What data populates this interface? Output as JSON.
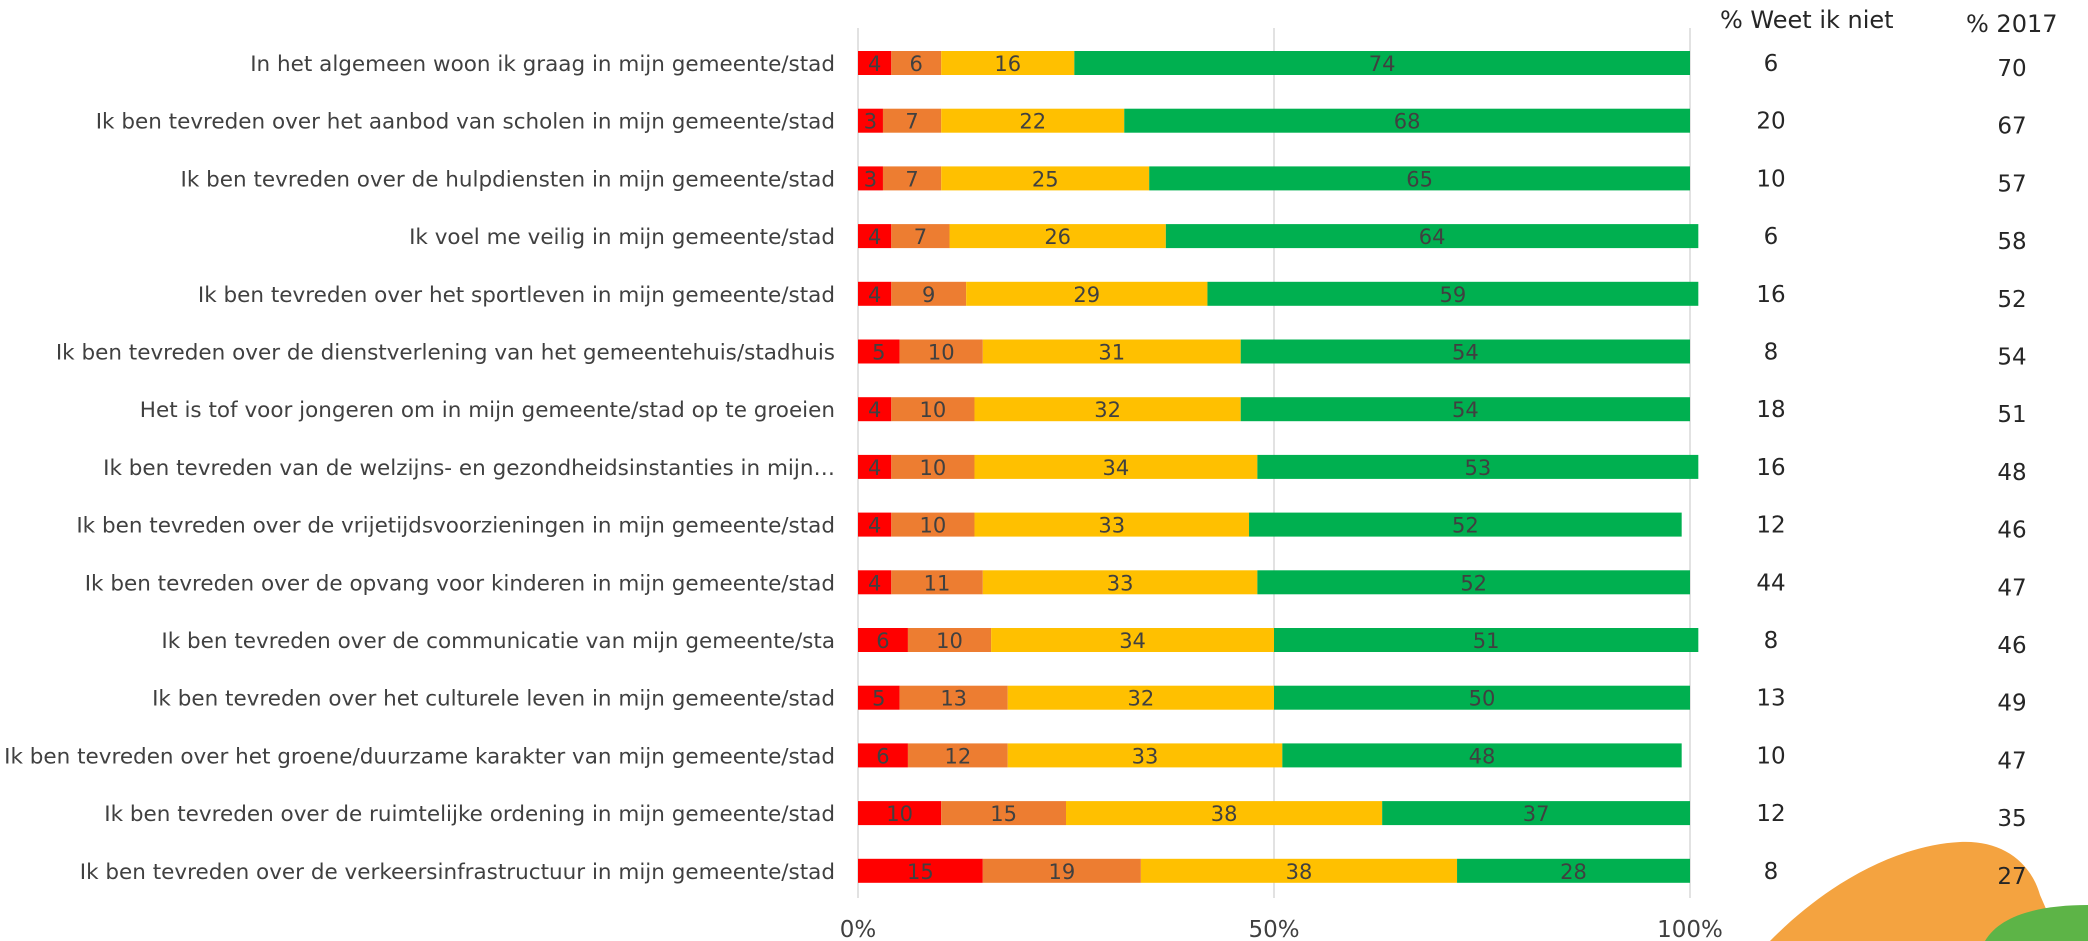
{
  "headers": {
    "weet_niet": "% Weet ik niet",
    "y2017": "% 2017"
  },
  "colors": {
    "series": [
      "#FF0000",
      "#ED7D31",
      "#FFC000",
      "#00B050"
    ],
    "grid": "#D9D9D9",
    "text": "#404040"
  },
  "chart_data": {
    "type": "bar",
    "orientation": "horizontal",
    "stacked": "percent",
    "xlim": [
      0,
      100
    ],
    "xticks": [
      "0%",
      "50%",
      "100%"
    ],
    "grid": true,
    "legend": "none",
    "categories": [
      "In het algemeen woon ik graag in mijn gemeente/stad",
      "Ik ben tevreden over het aanbod van scholen in mijn gemeente/stad",
      "Ik ben tevreden over de hulpdiensten in mijn gemeente/stad",
      "Ik voel me veilig in mijn gemeente/stad",
      "Ik ben tevreden over het sportleven in mijn gemeente/stad",
      "Ik ben tevreden over de dienstverlening van het gemeentehuis/stadhuis",
      "Het is tof voor jongeren om in mijn gemeente/stad op te groeien",
      "Ik ben tevreden van de welzijns- en gezondheidsinstanties in mijn…",
      "Ik ben tevreden over de vrijetijdsvoorzieningen in mijn gemeente/stad",
      "Ik ben tevreden over de opvang voor kinderen in mijn gemeente/stad",
      "Ik ben tevreden over de communicatie van mijn gemeente/sta",
      "Ik ben tevreden over het culturele leven in mijn gemeente/stad",
      "Ik ben tevreden over het groene/duurzame karakter van mijn gemeente/stad",
      "Ik ben tevreden over de ruimtelijke ordening in mijn gemeente/stad",
      "Ik ben tevreden over de verkeersinfrastructuur in mijn gemeente/stad"
    ],
    "series": [
      {
        "values": [
          4,
          3,
          3,
          4,
          4,
          5,
          4,
          4,
          4,
          4,
          6,
          5,
          6,
          10,
          15
        ]
      },
      {
        "values": [
          6,
          7,
          7,
          7,
          9,
          10,
          10,
          10,
          10,
          11,
          10,
          13,
          12,
          15,
          19
        ]
      },
      {
        "values": [
          16,
          22,
          25,
          26,
          29,
          31,
          32,
          34,
          33,
          33,
          34,
          32,
          33,
          38,
          38
        ]
      },
      {
        "values": [
          74,
          68,
          65,
          64,
          59,
          54,
          54,
          53,
          52,
          52,
          51,
          50,
          48,
          37,
          28
        ]
      }
    ],
    "weet_ik_niet": [
      6,
      20,
      10,
      6,
      16,
      8,
      18,
      16,
      12,
      44,
      8,
      13,
      10,
      12,
      8
    ],
    "pct_2017": [
      70,
      67,
      57,
      58,
      52,
      54,
      51,
      48,
      46,
      47,
      46,
      49,
      47,
      35,
      27
    ]
  }
}
